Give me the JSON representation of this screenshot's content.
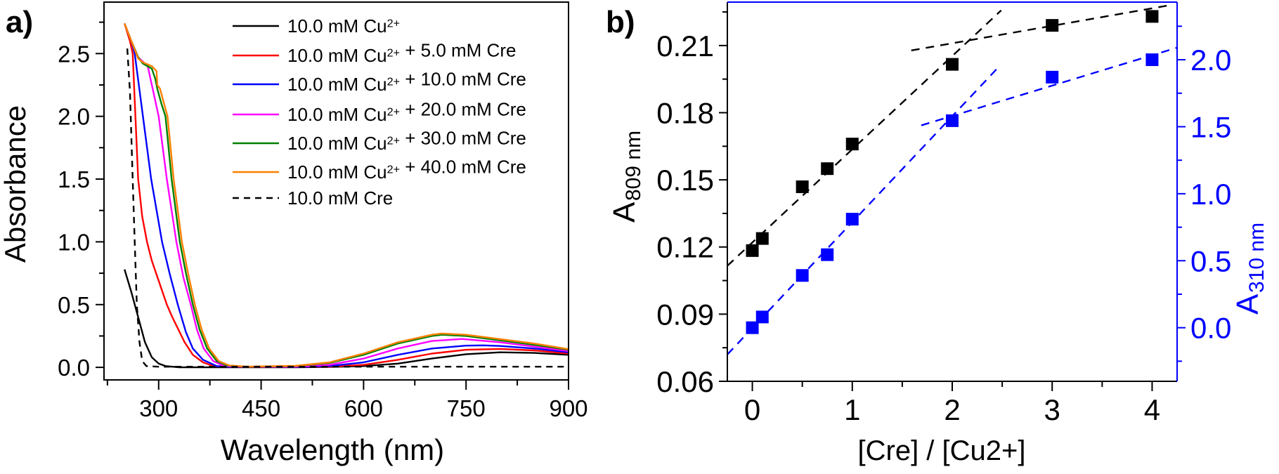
{
  "chart_data": [
    {
      "panel_label": "a)",
      "type": "line",
      "xlabel": "Wavelength (nm)",
      "ylabel": "Absorbance",
      "xlim": [
        220,
        900
      ],
      "ylim": [
        -0.1,
        2.91
      ],
      "x_ticks": [
        300,
        450,
        600,
        750,
        900
      ],
      "y_ticks": [
        0.0,
        0.5,
        1.0,
        1.5,
        2.0,
        2.5
      ],
      "grid": false,
      "legend_position": "top-right",
      "series": [
        {
          "name": "10.0 mM Cu2+",
          "color": "#000000",
          "dash": false,
          "x": [
            250,
            260,
            270,
            280,
            290,
            300,
            310,
            330,
            400,
            500,
            550,
            600,
            650,
            700,
            750,
            800,
            850,
            900
          ],
          "y": [
            0.78,
            0.6,
            0.4,
            0.2,
            0.08,
            0.03,
            0.01,
            0.0,
            0.0,
            0.0,
            0.003,
            0.01,
            0.03,
            0.07,
            0.105,
            0.12,
            0.115,
            0.1
          ]
        },
        {
          "name": "10.0 mM Cu2+ + 5.0 mM Cre",
          "color": "#ff0000",
          "dash": false,
          "x": [
            250,
            258,
            262,
            266,
            270,
            276,
            283,
            290,
            300,
            312,
            320,
            338,
            350,
            365,
            380,
            400,
            450,
            550,
            600,
            650,
            700,
            750,
            800,
            850,
            900
          ],
          "y": [
            2.74,
            2.6,
            2.5,
            2.0,
            1.5,
            1.2,
            1.0,
            0.85,
            0.69,
            0.5,
            0.4,
            0.2,
            0.1,
            0.04,
            0.01,
            0.005,
            0.003,
            0.005,
            0.02,
            0.06,
            0.11,
            0.14,
            0.147,
            0.135,
            0.11
          ]
        },
        {
          "name": "10.0 mM Cu2+ + 10.0 mM Cre",
          "color": "#0000ff",
          "dash": false,
          "x": [
            250,
            260,
            265,
            277,
            289,
            305,
            316,
            328,
            340,
            350,
            365,
            385,
            400,
            500,
            550,
            600,
            650,
            700,
            750,
            775,
            800,
            850,
            900
          ],
          "y": [
            2.74,
            2.6,
            2.5,
            2.0,
            1.5,
            1.0,
            0.75,
            0.5,
            0.28,
            0.15,
            0.06,
            0.01,
            0.005,
            0.003,
            0.01,
            0.04,
            0.1,
            0.15,
            0.173,
            0.175,
            0.17,
            0.15,
            0.12
          ]
        },
        {
          "name": "10.0 mM Cu2+ + 20.0 mM Cre",
          "color": "#ff00ff",
          "dash": false,
          "x": [
            250,
            260,
            270,
            280,
            284,
            292,
            300,
            312,
            326,
            336,
            347,
            356,
            366,
            380,
            395,
            420,
            500,
            550,
            600,
            650,
            700,
            744,
            800,
            850,
            900
          ],
          "y": [
            2.74,
            2.6,
            2.47,
            2.42,
            2.4,
            2.2,
            2.0,
            1.5,
            1.0,
            0.72,
            0.5,
            0.3,
            0.15,
            0.05,
            0.012,
            0.005,
            0.005,
            0.02,
            0.07,
            0.15,
            0.21,
            0.226,
            0.2,
            0.165,
            0.13
          ]
        },
        {
          "name": "10.0 mM Cu2+ + 30.0 mM Cre",
          "color": "#008000",
          "dash": false,
          "x": [
            250,
            260,
            270,
            277,
            290,
            295,
            298,
            304,
            310,
            319,
            331,
            340,
            350,
            360,
            371,
            385,
            400,
            430,
            500,
            550,
            600,
            650,
            700,
            715,
            750,
            800,
            850,
            900
          ],
          "y": [
            2.74,
            2.6,
            2.47,
            2.42,
            2.38,
            2.3,
            2.22,
            2.1,
            2.0,
            1.5,
            1.0,
            0.75,
            0.5,
            0.3,
            0.15,
            0.05,
            0.015,
            0.005,
            0.01,
            0.035,
            0.1,
            0.19,
            0.25,
            0.26,
            0.25,
            0.215,
            0.18,
            0.14
          ]
        },
        {
          "name": "10.0 mM Cu2+ + 40.0 mM Cre",
          "color": "#ff8000",
          "dash": false,
          "x": [
            250,
            260,
            270,
            277,
            290,
            297,
            298,
            302,
            308,
            313,
            322,
            334,
            343,
            353,
            363,
            374,
            388,
            403,
            430,
            500,
            550,
            600,
            650,
            700,
            714,
            750,
            800,
            850,
            900
          ],
          "y": [
            2.74,
            2.6,
            2.46,
            2.43,
            2.4,
            2.36,
            2.25,
            2.22,
            2.1,
            2.0,
            1.5,
            1.0,
            0.75,
            0.5,
            0.3,
            0.15,
            0.05,
            0.015,
            0.006,
            0.012,
            0.04,
            0.11,
            0.2,
            0.26,
            0.27,
            0.26,
            0.225,
            0.19,
            0.145
          ]
        },
        {
          "name": "10.0 mM Cre",
          "color": "#000000",
          "dash": true,
          "x": [
            254,
            258,
            262,
            265,
            268,
            272,
            276,
            282,
            300,
            900
          ],
          "y": [
            2.54,
            2.2,
            1.5,
            1.0,
            0.5,
            0.2,
            0.05,
            0.01,
            0.005,
            0.005
          ]
        }
      ]
    },
    {
      "panel_label": "b)",
      "type": "scatter",
      "xlabel": "[Cre] / [Cu2+]",
      "ylabel": "A",
      "ylabel_subscript": "809 nm",
      "y2label": "A",
      "y2label_subscript": "310 nm",
      "xlim": [
        -0.25,
        4.25
      ],
      "ylim": [
        0.06,
        0.2294
      ],
      "y2lim": [
        -0.4,
        2.43
      ],
      "x_ticks": [
        0,
        1,
        2,
        3,
        4
      ],
      "y_ticks": [
        0.06,
        0.09,
        0.12,
        0.15,
        0.18,
        0.21
      ],
      "y2_ticks": [
        0.0,
        0.5,
        1.0,
        1.5,
        2.0
      ],
      "y2_color": "#0000ff",
      "grid": false,
      "series": [
        {
          "axis": "left",
          "color": "#000000",
          "marker": "square",
          "x": [
            0,
            0.1,
            0.5,
            0.75,
            1,
            2,
            3,
            4
          ],
          "y": [
            0.1184,
            0.1238,
            0.1469,
            0.155,
            0.166,
            0.2016,
            0.219,
            0.223
          ]
        },
        {
          "axis": "right",
          "color": "#0000ff",
          "marker": "square",
          "x": [
            0,
            0.1,
            0.5,
            0.75,
            1,
            2,
            3,
            4
          ],
          "y": [
            0.0,
            0.08,
            0.39,
            0.545,
            0.81,
            1.545,
            1.87,
            2.0
          ]
        }
      ],
      "fit_lines": [
        {
          "axis": "left",
          "color": "#000000",
          "x": [
            -0.25,
            2.49
          ],
          "y": [
            0.1116,
            0.2257
          ]
        },
        {
          "axis": "left",
          "color": "#000000",
          "x": [
            1.59,
            4.15
          ],
          "y": [
            0.2078,
            0.2278
          ]
        },
        {
          "axis": "right",
          "color": "#0000ff",
          "x": [
            -0.25,
            2.47
          ],
          "y": [
            -0.2,
            1.95
          ]
        },
        {
          "axis": "right",
          "color": "#0000ff",
          "x": [
            1.69,
            4.25
          ],
          "y": [
            1.51,
            2.09
          ]
        }
      ]
    }
  ]
}
